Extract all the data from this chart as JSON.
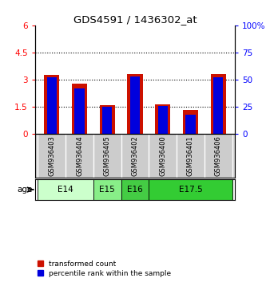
{
  "title": "GDS4591 / 1436302_at",
  "samples": [
    "GSM936403",
    "GSM936404",
    "GSM936405",
    "GSM936402",
    "GSM936400",
    "GSM936401",
    "GSM936406"
  ],
  "transformed_count": [
    3.25,
    2.8,
    1.58,
    3.3,
    1.65,
    1.35,
    3.3
  ],
  "percentile_rank_pct": [
    52,
    42,
    25,
    53,
    26,
    18,
    52
  ],
  "ylim_left": [
    0,
    6
  ],
  "ylim_right": [
    0,
    100
  ],
  "yticks_left": [
    0,
    1.5,
    3.0,
    4.5,
    6
  ],
  "yticks_right": [
    0,
    25,
    50,
    75,
    100
  ],
  "ytick_labels_left": [
    "0",
    "1.5",
    "3",
    "4.5",
    "6"
  ],
  "ytick_labels_right": [
    "0",
    "25",
    "50",
    "75",
    "100%"
  ],
  "bar_color_red": "#cc1100",
  "bar_color_blue": "#0000dd",
  "bar_width": 0.55,
  "blue_bar_width": 0.35,
  "sample_bg_color": "#cccccc",
  "age_groups": [
    {
      "label": "E14",
      "start": 0,
      "end": 2,
      "color": "#ccffcc"
    },
    {
      "label": "E15",
      "start": 2,
      "end": 3,
      "color": "#88ee88"
    },
    {
      "label": "E16",
      "start": 3,
      "end": 4,
      "color": "#44cc44"
    },
    {
      "label": "E17.5",
      "start": 4,
      "end": 7,
      "color": "#33cc33"
    }
  ]
}
